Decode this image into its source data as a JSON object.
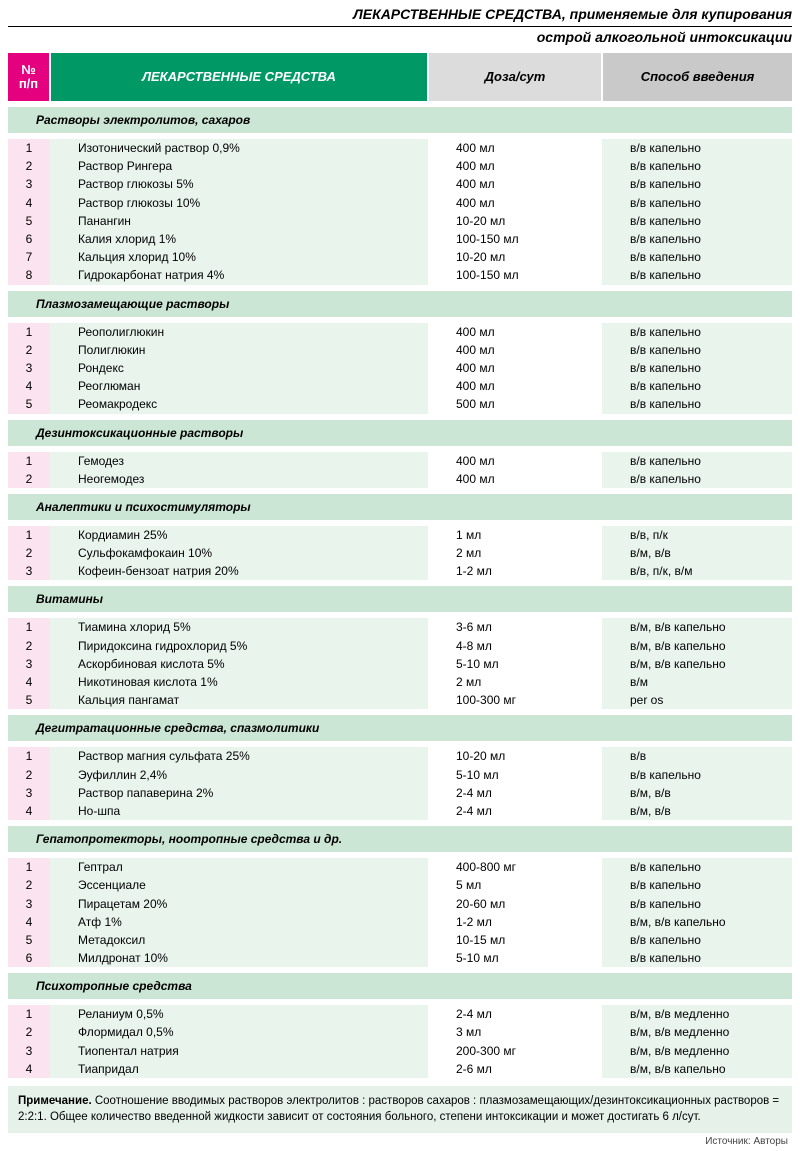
{
  "colors": {
    "accent_pink": "#e4007f",
    "accent_green": "#009966",
    "section_bg": "#cce6d6",
    "row_num_bg": "#fbe4ef",
    "row_green_bg": "#e9f4ed",
    "header_gray1": "#dcdcdc",
    "header_gray2": "#c9c9c9",
    "note_bg": "#e5f1e9"
  },
  "header": {
    "title_line1": "ЛЕКАРСТВЕННЫЕ СРЕДСТВА, применяемые для купирования",
    "title_line2": "острой алкогольной интоксикации",
    "col_num": "№ п/п",
    "col_name": "ЛЕКАРСТВЕННЫЕ СРЕДСТВА",
    "col_dose": "Доза/сут",
    "col_adm": "Способ введения"
  },
  "sections": [
    {
      "title": "Растворы электролитов, сахаров",
      "rows": [
        {
          "n": "1",
          "name": "Изотонический раствор 0,9%",
          "dose": "400 мл",
          "adm": "в/в капельно"
        },
        {
          "n": "2",
          "name": "Раствор Рингера",
          "dose": "400 мл",
          "adm": "в/в капельно"
        },
        {
          "n": "3",
          "name": "Раствор глюкозы 5%",
          "dose": "400 мл",
          "adm": "в/в капельно"
        },
        {
          "n": "4",
          "name": "Раствор глюкозы 10%",
          "dose": "400 мл",
          "adm": "в/в капельно"
        },
        {
          "n": "5",
          "name": "Панангин",
          "dose": "10-20 мл",
          "adm": "в/в капельно"
        },
        {
          "n": "6",
          "name": "Калия хлорид 1%",
          "dose": "100-150 мл",
          "adm": "в/в капельно"
        },
        {
          "n": "7",
          "name": "Кальция хлорид 10%",
          "dose": "10-20 мл",
          "adm": "в/в капельно"
        },
        {
          "n": "8",
          "name": "Гидрокарбонат натрия 4%",
          "dose": "100-150 мл",
          "adm": "в/в капельно"
        }
      ]
    },
    {
      "title": "Плазмозамещающие растворы",
      "rows": [
        {
          "n": "1",
          "name": "Реополиглюкин",
          "dose": "400 мл",
          "adm": "в/в капельно"
        },
        {
          "n": "2",
          "name": "Полиглюкин",
          "dose": "400 мл",
          "adm": "в/в капельно"
        },
        {
          "n": "3",
          "name": "Рондекс",
          "dose": "400 мл",
          "adm": "в/в капельно"
        },
        {
          "n": "4",
          "name": "Реоглюман",
          "dose": "400 мл",
          "adm": "в/в капельно"
        },
        {
          "n": "5",
          "name": "Реомакродекс",
          "dose": "500 мл",
          "adm": "в/в капельно"
        }
      ]
    },
    {
      "title": "Дезинтоксикационные растворы",
      "rows": [
        {
          "n": "1",
          "name": "Гемодез",
          "dose": "400 мл",
          "adm": "в/в капельно"
        },
        {
          "n": "2",
          "name": "Неогемодез",
          "dose": "400 мл",
          "adm": "в/в капельно"
        }
      ]
    },
    {
      "title": "Аналептики и психостимуляторы",
      "rows": [
        {
          "n": "1",
          "name": "Кордиамин 25%",
          "dose": "1 мл",
          "adm": "в/в, п/к"
        },
        {
          "n": "2",
          "name": "Сульфокамфокаин 10%",
          "dose": "2 мл",
          "adm": "в/м, в/в"
        },
        {
          "n": "3",
          "name": "Кофеин-бензоат натрия 20%",
          "dose": "1-2 мл",
          "adm": "в/в, п/к, в/м"
        }
      ]
    },
    {
      "title": "Витамины",
      "rows": [
        {
          "n": "1",
          "name": "Тиамина хлорид 5%",
          "dose": "3-6 мл",
          "adm": "в/м, в/в капельно"
        },
        {
          "n": "2",
          "name": "Пиридоксина гидрохлорид 5%",
          "dose": "4-8 мл",
          "adm": "в/м, в/в капельно"
        },
        {
          "n": "3",
          "name": "Аскорбиновая кислота 5%",
          "dose": "5-10 мл",
          "adm": "в/м, в/в капельно"
        },
        {
          "n": "4",
          "name": "Никотиновая кислота 1%",
          "dose": "2 мл",
          "adm": "в/м"
        },
        {
          "n": "5",
          "name": "Кальция пангамат",
          "dose": "100-300 мг",
          "adm": "per os"
        }
      ]
    },
    {
      "title": "Дегитратационные средства, спазмолитики",
      "rows": [
        {
          "n": "1",
          "name": "Раствор магния сульфата 25%",
          "dose": "10-20 мл",
          "adm": "в/в"
        },
        {
          "n": "2",
          "name": "Эуфиллин 2,4%",
          "dose": "5-10 мл",
          "adm": "в/в капельно"
        },
        {
          "n": "3",
          "name": "Раствор папаверина 2%",
          "dose": "2-4 мл",
          "adm": "в/м, в/в"
        },
        {
          "n": "4",
          "name": "Но-шпа",
          "dose": "2-4 мл",
          "adm": "в/м, в/в"
        }
      ]
    },
    {
      "title": "Гепатопротекторы, ноотропные средства и др.",
      "rows": [
        {
          "n": "1",
          "name": "Гептрал",
          "dose": "400-800 мг",
          "adm": "в/в капельно"
        },
        {
          "n": "2",
          "name": "Эссенциале",
          "dose": "5 мл",
          "adm": "в/в капельно"
        },
        {
          "n": "3",
          "name": "Пирацетам 20%",
          "dose": "20-60 мл",
          "adm": "в/в капельно"
        },
        {
          "n": "4",
          "name": "Атф 1%",
          "dose": "1-2 мл",
          "adm": "в/м, в/в капельно"
        },
        {
          "n": "5",
          "name": "Метадоксил",
          "dose": "10-15 мл",
          "adm": "в/в капельно"
        },
        {
          "n": "6",
          "name": "Милдронат 10%",
          "dose": "5-10 мл",
          "adm": "в/в капельно"
        }
      ]
    },
    {
      "title": "Психотропные средства",
      "rows": [
        {
          "n": "1",
          "name": "Реланиум 0,5%",
          "dose": "2-4 мл",
          "adm": "в/м, в/в медленно"
        },
        {
          "n": "2",
          "name": "Флормидал 0,5%",
          "dose": "3 мл",
          "adm": "в/м, в/в медленно"
        },
        {
          "n": "3",
          "name": "Тиопентал натрия",
          "dose": "200-300 мг",
          "adm": "в/м, в/в медленно"
        },
        {
          "n": "4",
          "name": "Тиапридал",
          "dose": "2-6 мл",
          "adm": "в/м, в/в капельно"
        }
      ]
    }
  ],
  "note": {
    "label": "Примечание.",
    "text": "Соотношение вводимых растворов электролитов : растворов сахаров : плазмозамещающих/дезинтоксикационных растворов = 2:2:1. Общее количество введенной жидкости зависит от состояния больного, степени интоксикации и может достигать 6 л/сут."
  },
  "source": "Источник: Авторы"
}
